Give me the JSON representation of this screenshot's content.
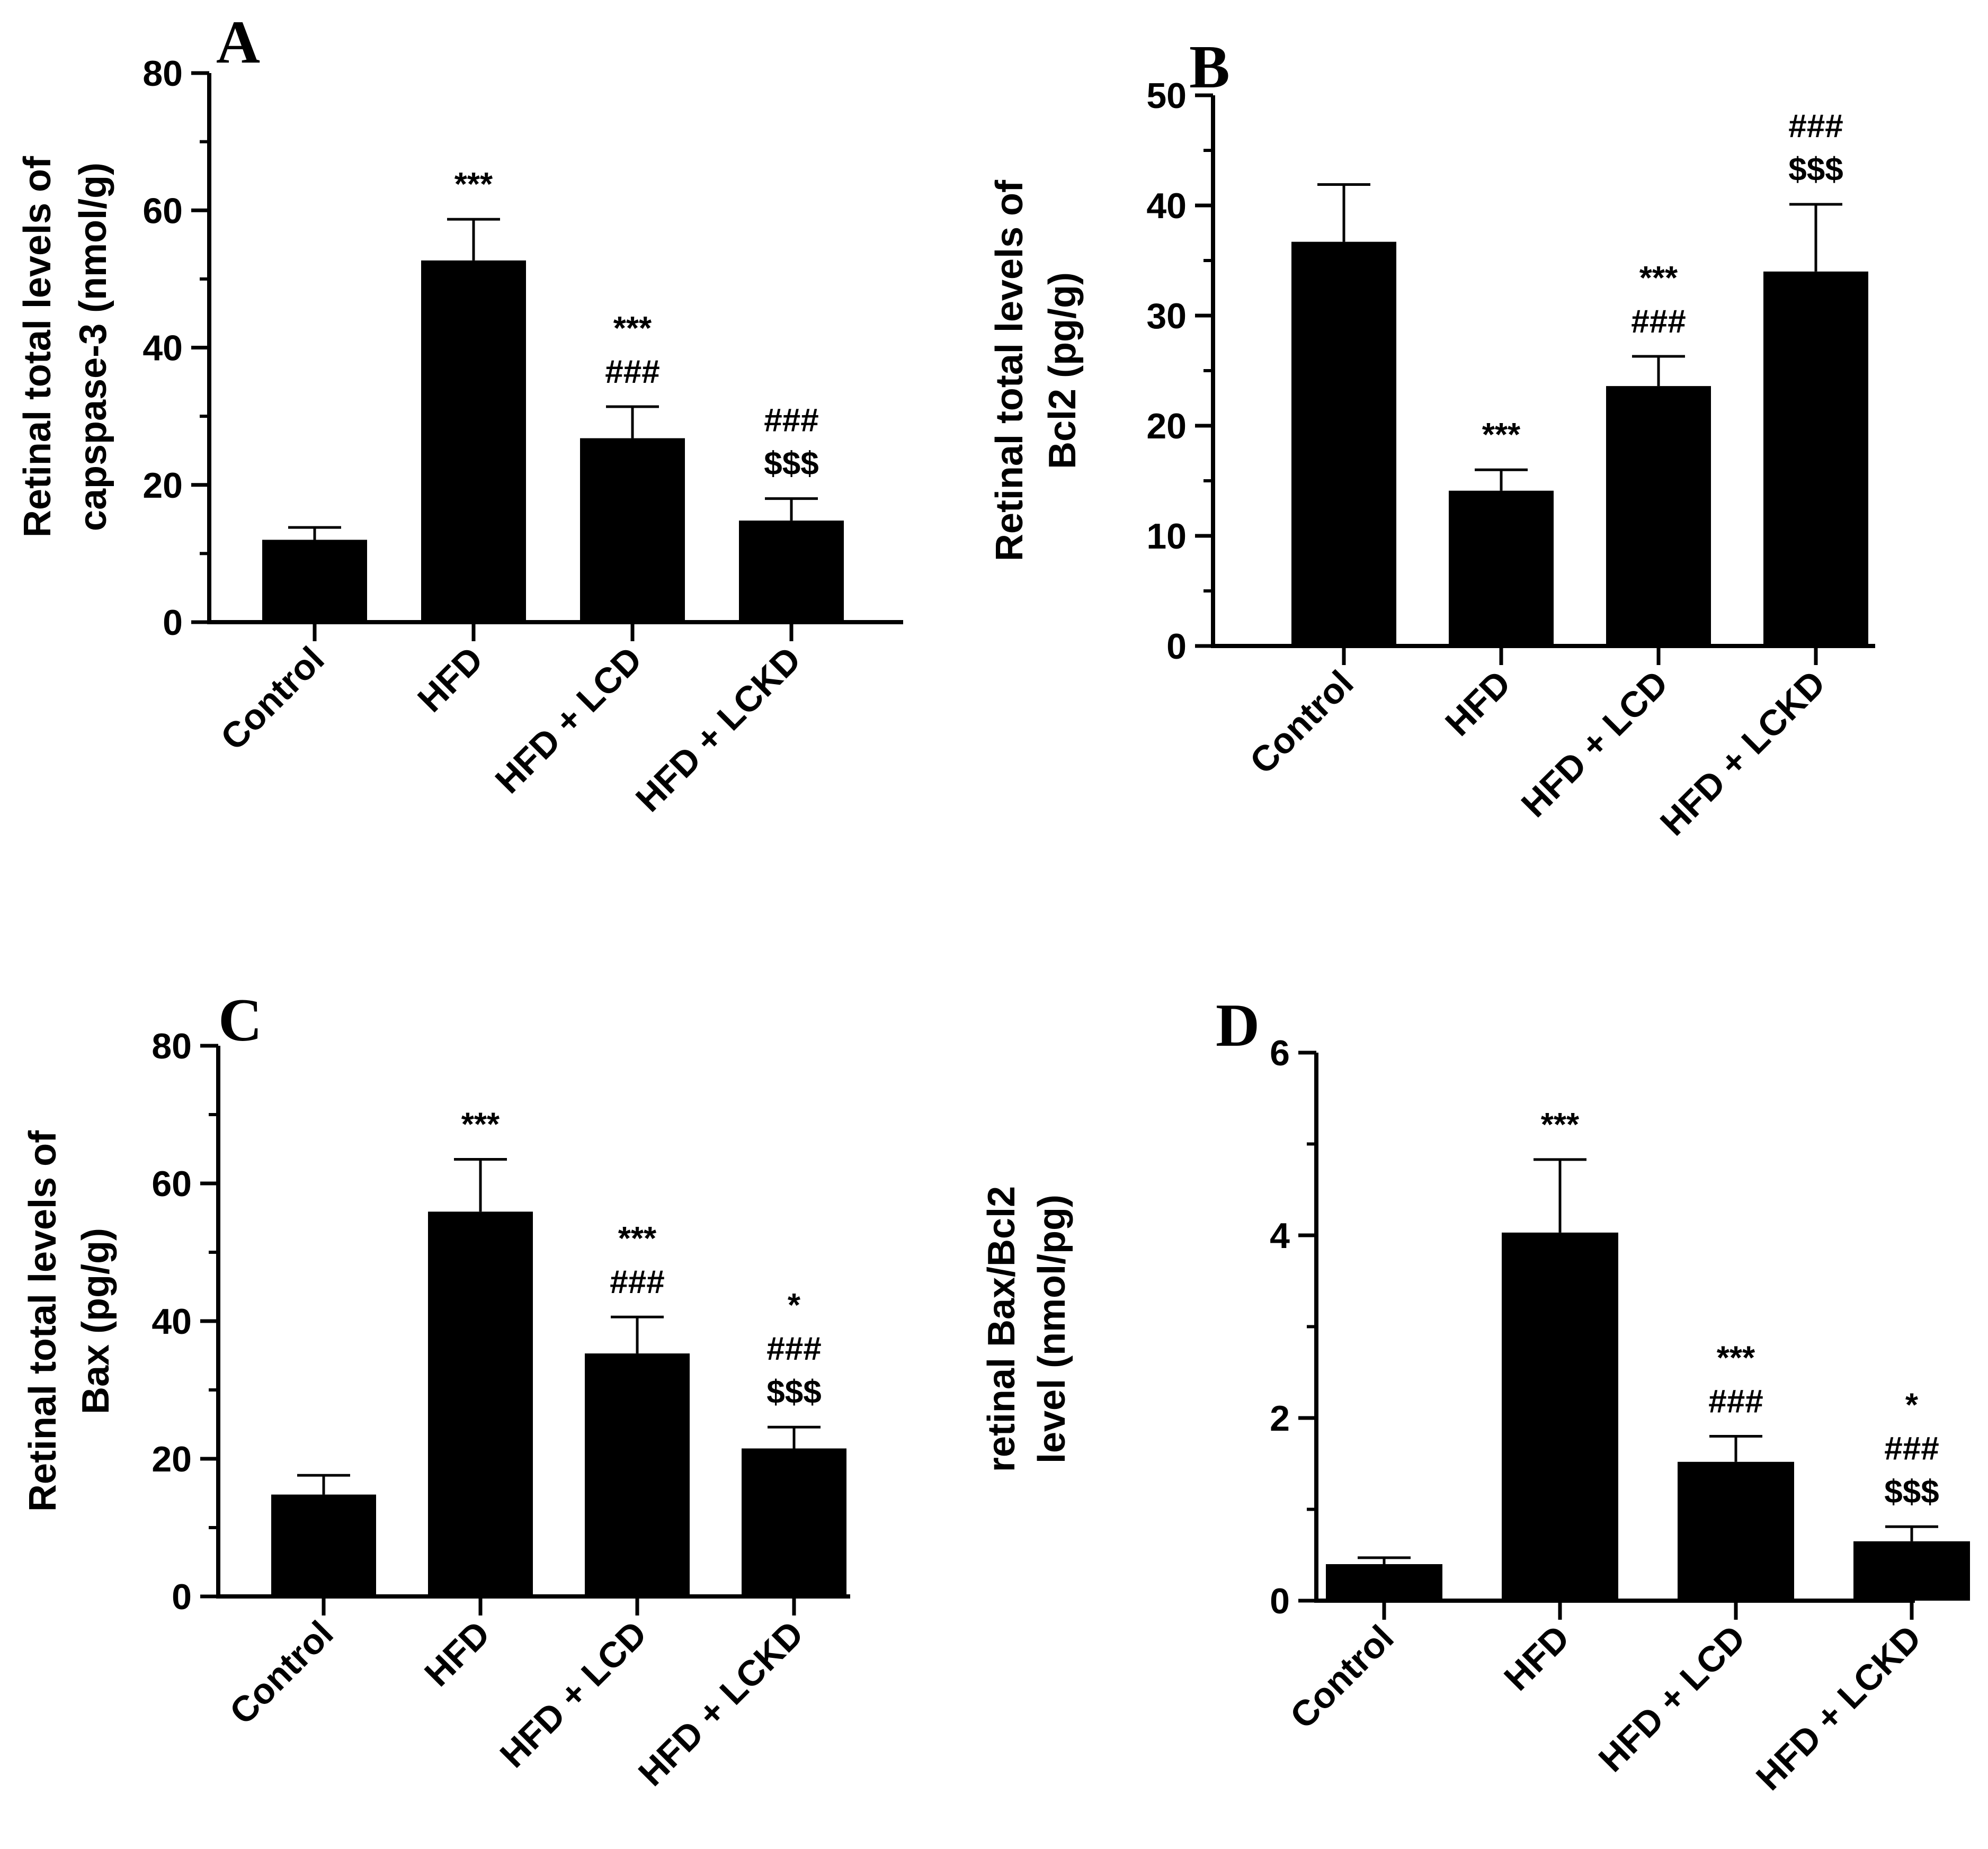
{
  "chart_data": [
    {
      "panel": "A",
      "type": "bar",
      "categories": [
        "Control",
        "HFD",
        "HFD + LCD",
        "HFD + LCKD"
      ],
      "values": [
        12,
        52.7,
        26.8,
        14.8
      ],
      "errors": [
        1.8,
        6,
        4.6,
        3.2
      ],
      "ylim": [
        0,
        80
      ],
      "yticks": [
        0,
        20,
        40,
        60,
        80
      ],
      "ylabel_lines": [
        "Retinal total levels of",
        "capspase-3 (nmol/g)"
      ],
      "annotations": [
        [],
        [
          "***"
        ],
        [
          "***",
          "###"
        ],
        [
          "###",
          "$$$"
        ]
      ]
    },
    {
      "panel": "B",
      "type": "bar",
      "categories": [
        "Control",
        "HFD",
        "HFD + LCD",
        "HFD + LCKD"
      ],
      "values": [
        36.7,
        14.1,
        23.6,
        34
      ],
      "errors": [
        5.2,
        1.9,
        2.7,
        6.1
      ],
      "ylim": [
        0,
        50
      ],
      "yticks": [
        0,
        10,
        20,
        30,
        40,
        50
      ],
      "ylabel_lines": [
        "Retinal total levels of",
        "Bcl2 (pg/g)"
      ],
      "annotations": [
        [],
        [
          "***"
        ],
        [
          "***",
          "###"
        ],
        [
          "###",
          "$$$"
        ]
      ]
    },
    {
      "panel": "C",
      "type": "bar",
      "categories": [
        "Control",
        "HFD",
        "HFD + LCD",
        "HFD + LCKD"
      ],
      "values": [
        14.8,
        55.9,
        35.3,
        21.5
      ],
      "errors": [
        2.8,
        7.6,
        5.3,
        3.1
      ],
      "ylim": [
        0,
        80
      ],
      "yticks": [
        0,
        20,
        40,
        60,
        80
      ],
      "ylabel_lines": [
        "Retinal total levels of",
        "Bax (pg/g)"
      ],
      "annotations": [
        [],
        [
          "***"
        ],
        [
          "***",
          "###"
        ],
        [
          "*",
          "###",
          "$$$"
        ]
      ]
    },
    {
      "panel": "D",
      "type": "bar",
      "categories": [
        "Control",
        "HFD",
        "HFD + LCD",
        "HFD + LCKD"
      ],
      "values": [
        0.4,
        4.03,
        1.52,
        0.65
      ],
      "errors": [
        0.07,
        0.8,
        0.28,
        0.16
      ],
      "ylim": [
        0,
        6
      ],
      "yticks": [
        0,
        2,
        4,
        6
      ],
      "ylabel_lines": [
        "retinal Bax/Bcl2",
        "level (nmol/pg)"
      ],
      "annotations": [
        [],
        [
          "***"
        ],
        [
          "***",
          "###"
        ],
        [
          "*",
          "###",
          "$$$"
        ]
      ]
    }
  ]
}
